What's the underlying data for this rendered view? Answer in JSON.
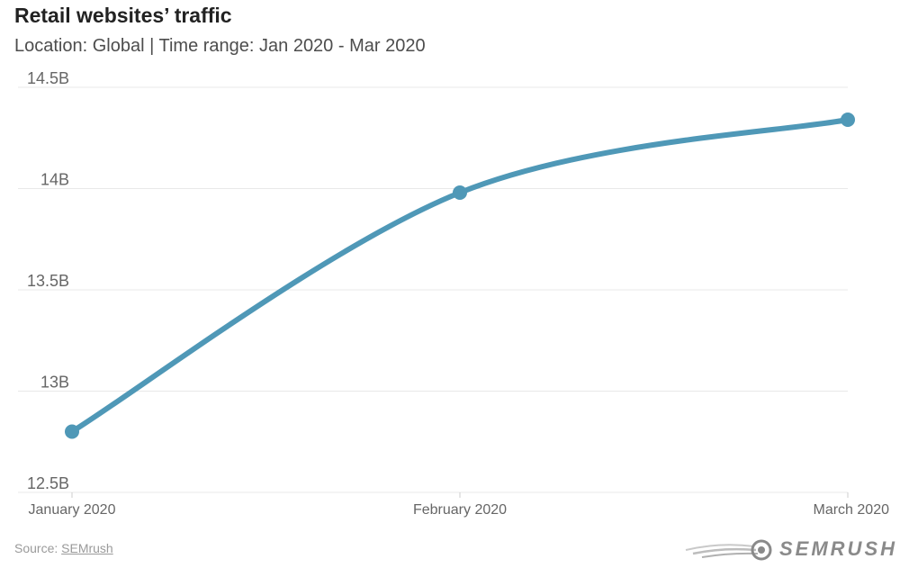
{
  "title": "Retail websites’ traffic",
  "subtitle": "Location: Global | Time range: Jan 2020 - Mar 2020",
  "source": {
    "prefix": "Source: ",
    "link": "SEMrush"
  },
  "logo_text": "SEMRUSH",
  "colors": {
    "line": "#4f98b7",
    "grid": "#e8e8e8",
    "text": "#666666"
  },
  "chart_data": {
    "type": "line",
    "title": "Retail websites’ traffic",
    "subtitle": "Location: Global | Time range: Jan 2020 - Mar 2020",
    "categories": [
      "January 2020",
      "February 2020",
      "March 2020"
    ],
    "values": [
      12.8,
      13.98,
      14.34
    ],
    "value_unit": "billion visits",
    "ylim": [
      12.5,
      14.5
    ],
    "y_ticks": [
      12.5,
      13,
      13.5,
      14,
      14.5
    ],
    "y_tick_labels": [
      "12.5B",
      "13B",
      "13.5B",
      "14B",
      "14.5B"
    ],
    "grid": true,
    "smooth": true,
    "legend": "none"
  }
}
